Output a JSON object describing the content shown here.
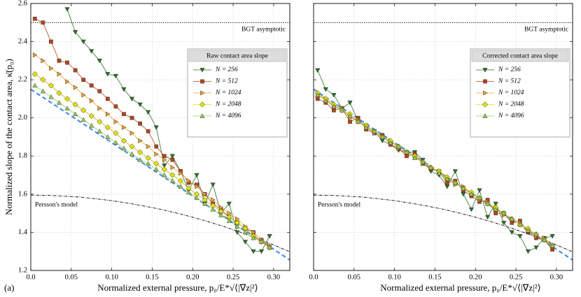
{
  "chart_data": [
    {
      "type": "line",
      "ylabel": "Normalized slope of the contact area, κ̄(p₀)",
      "xlabel": "Normalized external pressure, p₀/E*√⟨|∇z|²⟩",
      "panel_label": "(a)",
      "legend_title": "Raw contact area slope",
      "show_ytick_labels": true,
      "grid": true,
      "xlim": [
        0,
        0.32
      ],
      "ylim": [
        1.2,
        2.6
      ],
      "xticks": [
        {
          "value": 0,
          "label": "0.0"
        },
        0.05,
        {
          "value": 0.1,
          "label": "0.10"
        },
        0.15,
        {
          "value": 0.2,
          "label": "0.20"
        },
        0.25,
        {
          "value": 0.3,
          "label": "0.30"
        }
      ],
      "yticks": [
        1.2,
        1.4,
        1.6,
        1.8,
        {
          "value": 2,
          "label": "2.0"
        },
        2.2,
        2.4,
        2.6
      ],
      "x": [
        0.005,
        0.015,
        0.025,
        0.035,
        0.045,
        0.055,
        0.065,
        0.075,
        0.085,
        0.095,
        0.105,
        0.115,
        0.125,
        0.135,
        0.145,
        0.155,
        0.165,
        0.175,
        0.185,
        0.195,
        0.205,
        0.215,
        0.225,
        0.235,
        0.245,
        0.255,
        0.265,
        0.275,
        0.285,
        0.295
      ],
      "series": [
        {
          "name": "N = 256",
          "color": "#2f6f2a",
          "marker": "tri-down",
          "values": [
            null,
            null,
            null,
            null,
            2.57,
            2.45,
            2.4,
            2.35,
            2.3,
            2.23,
            2.22,
            2.15,
            2.1,
            2.07,
            2.03,
            1.95,
            1.75,
            1.8,
            1.72,
            1.62,
            1.7,
            1.55,
            1.65,
            1.5,
            1.55,
            1.4,
            1.35,
            1.3,
            1.3,
            1.38
          ]
        },
        {
          "name": "N = 512",
          "color": "#b8421c",
          "marker": "square",
          "values": [
            2.52,
            2.5,
            2.4,
            2.3,
            2.29,
            2.25,
            2.2,
            2.17,
            2.14,
            2.1,
            2.06,
            2.02,
            2.0,
            1.97,
            1.93,
            1.85,
            1.8,
            1.78,
            1.72,
            1.66,
            1.65,
            1.6,
            1.55,
            1.52,
            1.48,
            1.45,
            1.42,
            1.4,
            1.36,
            1.32
          ]
        },
        {
          "name": "N = 1024",
          "color": "#f0a030",
          "marker": "tri-right",
          "values": [
            2.33,
            2.3,
            2.26,
            2.23,
            2.19,
            2.16,
            2.12,
            2.09,
            2.05,
            2.02,
            1.98,
            1.95,
            1.92,
            1.88,
            1.85,
            1.81,
            1.78,
            1.74,
            1.71,
            1.67,
            1.64,
            1.6,
            1.57,
            1.53,
            1.5,
            1.47,
            1.43,
            1.4,
            1.36,
            1.33
          ]
        },
        {
          "name": "N = 2048",
          "color": "#e6e000",
          "marker": "diamond",
          "values": [
            2.23,
            2.2,
            2.17,
            2.13,
            2.1,
            2.07,
            2.04,
            2.01,
            1.98,
            1.95,
            1.92,
            1.88,
            1.85,
            1.82,
            1.79,
            1.76,
            1.73,
            1.7,
            1.67,
            1.63,
            1.6,
            1.57,
            1.54,
            1.51,
            1.48,
            1.45,
            1.42,
            1.38,
            1.35,
            1.32
          ]
        },
        {
          "name": "N = 4096",
          "color": "#9ccc5a",
          "marker": "tri-up",
          "values": [
            2.17,
            2.14,
            2.11,
            2.08,
            2.05,
            2.02,
            1.99,
            1.96,
            1.93,
            1.9,
            1.87,
            1.84,
            1.81,
            1.78,
            1.76,
            1.73,
            1.7,
            1.67,
            1.64,
            1.61,
            1.58,
            1.55,
            1.52,
            1.49,
            1.46,
            1.43,
            1.4,
            1.37,
            1.35,
            1.32
          ]
        }
      ],
      "curves": [
        {
          "label": "BGT asymptotic",
          "color": "#000000",
          "dash": "1.5,1.5",
          "x": [
            0,
            0.32
          ],
          "values": [
            2.5,
            2.5
          ]
        },
        {
          "label": "Persson's model",
          "color": "#000000",
          "dash": "4,1.5,1,1.5",
          "x": [
            0,
            0.02,
            0.04,
            0.06,
            0.08,
            0.1,
            0.12,
            0.14,
            0.16,
            0.18,
            0.2,
            0.22,
            0.24,
            0.26,
            0.28,
            0.3,
            0.32
          ],
          "values": [
            1.595,
            1.594,
            1.59,
            1.585,
            1.576,
            1.566,
            1.553,
            1.538,
            1.521,
            1.501,
            1.479,
            1.455,
            1.428,
            1.399,
            1.368,
            1.334,
            1.298
          ]
        },
        {
          "color": "#4a90e2",
          "dash": "6,4",
          "x": [
            0,
            0.32
          ],
          "values": [
            2.15,
            1.255
          ]
        }
      ]
    },
    {
      "type": "line",
      "xlabel": "Normalized external pressure, p₀/E*√⟨|∇z|²⟩",
      "legend_title": "Corrected contact area slope",
      "show_ytick_labels": false,
      "grid": true,
      "xlim": [
        0,
        0.32
      ],
      "ylim": [
        1.2,
        2.6
      ],
      "xticks": [
        {
          "value": 0,
          "label": "0.0"
        },
        0.05,
        {
          "value": 0.1,
          "label": "0.10"
        },
        0.15,
        {
          "value": 0.2,
          "label": "0.20"
        },
        0.25,
        {
          "value": 0.3,
          "label": "0.30"
        }
      ],
      "yticks": [
        1.2,
        1.4,
        1.6,
        1.8,
        2,
        2.2,
        2.4,
        2.6
      ],
      "x": [
        0.005,
        0.015,
        0.025,
        0.035,
        0.045,
        0.055,
        0.065,
        0.075,
        0.085,
        0.095,
        0.105,
        0.115,
        0.125,
        0.135,
        0.145,
        0.155,
        0.165,
        0.175,
        0.185,
        0.195,
        0.205,
        0.215,
        0.225,
        0.235,
        0.245,
        0.255,
        0.265,
        0.275,
        0.285,
        0.295
      ],
      "series": [
        {
          "name": "N = 256",
          "color": "#2f6f2a",
          "marker": "tri-down",
          "values": [
            2.25,
            2.15,
            2.12,
            2.05,
            2.08,
            1.98,
            1.96,
            1.93,
            1.88,
            1.86,
            1.83,
            1.82,
            1.82,
            1.78,
            1.72,
            1.7,
            1.64,
            1.72,
            1.6,
            1.52,
            1.62,
            1.48,
            1.55,
            1.45,
            1.4,
            1.38,
            1.3,
            1.32,
            1.37,
            1.38
          ]
        },
        {
          "name": "N = 512",
          "color": "#b8421c",
          "marker": "square",
          "values": [
            2.1,
            2.08,
            2.04,
            2.05,
            1.98,
            2.0,
            1.94,
            1.92,
            1.91,
            1.86,
            1.84,
            1.8,
            1.81,
            1.76,
            1.73,
            1.72,
            1.66,
            1.67,
            1.62,
            1.59,
            1.56,
            1.57,
            1.5,
            1.5,
            1.45,
            1.46,
            1.4,
            1.37,
            1.36,
            1.31
          ]
        },
        {
          "name": "N = 1024",
          "color": "#f0a030",
          "marker": "tri-right",
          "values": [
            2.12,
            2.1,
            2.06,
            2.05,
            2.0,
            1.99,
            1.95,
            1.92,
            1.9,
            1.88,
            1.84,
            1.82,
            1.8,
            1.76,
            1.74,
            1.72,
            1.68,
            1.65,
            1.64,
            1.6,
            1.57,
            1.56,
            1.52,
            1.49,
            1.47,
            1.45,
            1.41,
            1.38,
            1.37,
            1.33
          ]
        },
        {
          "name": "N = 2048",
          "color": "#e6e000",
          "marker": "diamond",
          "values": [
            2.13,
            2.1,
            2.07,
            2.04,
            2.02,
            1.98,
            1.96,
            1.93,
            1.9,
            1.88,
            1.85,
            1.82,
            1.8,
            1.77,
            1.74,
            1.72,
            1.69,
            1.66,
            1.63,
            1.61,
            1.58,
            1.55,
            1.53,
            1.5,
            1.47,
            1.44,
            1.42,
            1.39,
            1.36,
            1.33
          ]
        },
        {
          "name": "N = 4096",
          "color": "#9ccc5a",
          "marker": "tri-up",
          "values": [
            2.12,
            2.09,
            2.06,
            2.04,
            2.01,
            1.98,
            1.95,
            1.93,
            1.9,
            1.87,
            1.85,
            1.82,
            1.79,
            1.77,
            1.74,
            1.71,
            1.68,
            1.66,
            1.63,
            1.6,
            1.58,
            1.55,
            1.52,
            1.5,
            1.47,
            1.44,
            1.41,
            1.39,
            1.36,
            1.33
          ]
        }
      ],
      "curves": [
        {
          "label": "BGT asymptotic",
          "color": "#000000",
          "dash": "1.5,1.5",
          "x": [
            0,
            0.32
          ],
          "values": [
            2.5,
            2.5
          ]
        },
        {
          "label": "Persson's model",
          "color": "#000000",
          "dash": "4,1.5,1,1.5",
          "x": [
            0,
            0.02,
            0.04,
            0.06,
            0.08,
            0.1,
            0.12,
            0.14,
            0.16,
            0.18,
            0.2,
            0.22,
            0.24,
            0.26,
            0.28,
            0.3,
            0.32
          ],
          "values": [
            1.595,
            1.594,
            1.59,
            1.585,
            1.576,
            1.566,
            1.553,
            1.538,
            1.521,
            1.501,
            1.479,
            1.455,
            1.428,
            1.399,
            1.368,
            1.334,
            1.298
          ]
        },
        {
          "color": "#4a90e2",
          "dash": "6,4",
          "x": [
            0,
            0.32
          ],
          "values": [
            2.15,
            1.255
          ]
        }
      ]
    }
  ]
}
